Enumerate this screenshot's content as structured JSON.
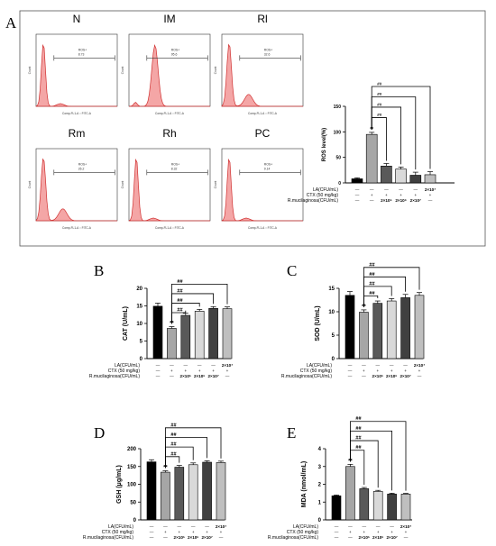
{
  "panel_letters": {
    "a": "A",
    "b": "B",
    "c": "C",
    "d": "D",
    "e": "E"
  },
  "flow_panels": [
    {
      "title": "N",
      "gate_label": "ROS+",
      "gate_value": "8.73",
      "xlabel": "Comp-FL1-A :: FITC-A",
      "ylabel": "Count",
      "peak": "low"
    },
    {
      "title": "IM",
      "gate_label": "ROS+",
      "gate_value": "95.6",
      "xlabel": "Comp-FL1-A :: FITC-A",
      "ylabel": "Count",
      "peak": "high"
    },
    {
      "title": "Rl",
      "gate_label": "ROS+",
      "gate_value": "32.6",
      "xlabel": "Comp-FL1-A :: FITC-A",
      "ylabel": "Count",
      "peak": "mid"
    },
    {
      "title": "Rm",
      "gate_label": "ROS+",
      "gate_value": "26.2",
      "xlabel": "Comp-FL1-A :: FITC-A",
      "ylabel": "Count",
      "peak": "mid"
    },
    {
      "title": "Rh",
      "gate_label": "ROS+",
      "gate_value": "8.32",
      "xlabel": "Comp-FL1-A :: FITC-A",
      "ylabel": "Count",
      "peak": "low"
    },
    {
      "title": "PC",
      "gate_label": "ROS+",
      "gate_value": "9.14",
      "xlabel": "Comp-FL1-A :: FITC-A",
      "ylabel": "Count",
      "peak": "low"
    }
  ],
  "treatment_rows": {
    "labels": [
      "LA(CFU/mL)",
      "CTX (50 mg/kg)",
      "R.mucilaginosa(CFU/mL)"
    ],
    "la": [
      "—",
      "—",
      "—",
      "—",
      "—",
      "2×10⁷"
    ],
    "ctx": [
      "—",
      "+",
      "+",
      "+",
      "+",
      "+"
    ],
    "rm": [
      "—",
      "—",
      "2×10⁵",
      "2×10⁶",
      "2×10⁷",
      "—"
    ]
  },
  "significance": {
    "vs_n": "**",
    "vs_ctx": "##"
  },
  "colors": {
    "histogram_fill": "#f4a6a6",
    "histogram_line": "#d03030",
    "bars": [
      "#000000",
      "#a6a6a6",
      "#595959",
      "#d9d9d9",
      "#404040",
      "#bfbfbf"
    ]
  },
  "chart_data": [
    {
      "panel": "A",
      "type": "bar",
      "ylabel": "ROS level(%)",
      "ylim": [
        0,
        150
      ],
      "ticks": [
        0,
        50,
        100,
        150
      ],
      "categories": [
        "1",
        "2",
        "3",
        "4",
        "5",
        "6"
      ],
      "values": [
        8,
        95,
        33,
        27,
        15,
        16
      ],
      "errors": [
        2,
        4,
        5,
        4,
        6,
        6
      ]
    },
    {
      "panel": "B",
      "type": "bar",
      "ylabel": "CAT (U/mL)",
      "ylim": [
        0,
        20
      ],
      "ticks": [
        0,
        5,
        10,
        15,
        20
      ],
      "categories": [
        "1",
        "2",
        "3",
        "4",
        "5",
        "6"
      ],
      "values": [
        14.9,
        8.6,
        12.3,
        13.5,
        14.3,
        14.2
      ],
      "errors": [
        0.9,
        0.5,
        0.6,
        0.5,
        0.5,
        0.5
      ]
    },
    {
      "panel": "C",
      "type": "bar",
      "ylabel": "SOD (U/mL)",
      "ylim": [
        0,
        15
      ],
      "ticks": [
        0,
        5,
        10,
        15
      ],
      "categories": [
        "1",
        "2",
        "3",
        "4",
        "5",
        "6"
      ],
      "values": [
        13.5,
        9.9,
        11.8,
        12.3,
        13.0,
        13.5
      ],
      "errors": [
        0.8,
        0.5,
        0.5,
        0.5,
        0.7,
        0.6
      ]
    },
    {
      "panel": "D",
      "type": "bar",
      "ylabel": "GSH (μg/mL)",
      "ylim": [
        0,
        200
      ],
      "ticks": [
        0,
        50,
        100,
        150,
        200
      ],
      "categories": [
        "1",
        "2",
        "3",
        "4",
        "5",
        "6"
      ],
      "values": [
        163,
        134,
        148,
        155,
        162,
        161
      ],
      "errors": [
        6,
        4,
        5,
        5,
        4,
        4
      ]
    },
    {
      "panel": "E",
      "type": "bar",
      "ylabel": "MDA (nmol/mL)",
      "ylim": [
        0,
        4
      ],
      "ticks": [
        0,
        1,
        2,
        3,
        4
      ],
      "categories": [
        "1",
        "2",
        "3",
        "4",
        "5",
        "6"
      ],
      "values": [
        1.35,
        3.0,
        1.75,
        1.6,
        1.45,
        1.45
      ],
      "errors": [
        0.05,
        0.12,
        0.07,
        0.06,
        0.05,
        0.04
      ]
    }
  ]
}
